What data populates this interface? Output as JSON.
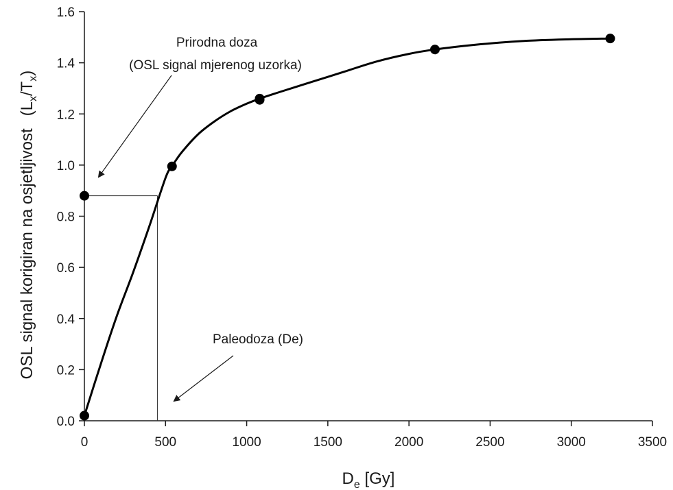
{
  "chart_data": {
    "type": "scatter",
    "title": "",
    "xlabel": {
      "main": "D",
      "sub": "e",
      "rest": " [Gy]"
    },
    "ylabel": {
      "main": "OSL signal korigiran na osjetljivost",
      "paren_open": "(L",
      "sub1": "x",
      "slash": "/T",
      "sub2": "x",
      "paren_close": ")"
    },
    "xlim": [
      0,
      3500
    ],
    "ylim": [
      0,
      1.6
    ],
    "x_ticks": [
      0,
      500,
      1000,
      1500,
      2000,
      2500,
      3000,
      3500
    ],
    "x_tick_labels": [
      "0",
      "500",
      "1000",
      "1500",
      "2000",
      "2500",
      "3000",
      "3500"
    ],
    "y_ticks": [
      0.0,
      0.2,
      0.4,
      0.6,
      0.8,
      1.0,
      1.2,
      1.4,
      1.6
    ],
    "y_tick_labels": [
      "0.0",
      "0.2",
      "0.4",
      "0.6",
      "0.8",
      "1.0",
      "1.2",
      "1.4",
      "1.6"
    ],
    "grid": false,
    "legend": "none",
    "series": [
      {
        "x": [
          0,
          0,
          540,
          1080,
          1080,
          2160,
          3240
        ],
        "y": [
          0.02,
          0.88,
          0.995,
          1.26,
          1.255,
          1.452,
          1.495
        ]
      }
    ],
    "fit_curve": {
      "x": [
        0,
        100,
        200,
        300,
        400,
        500,
        540,
        600,
        700,
        800,
        900,
        1000,
        1080,
        1200,
        1400,
        1600,
        1800,
        2000,
        2160,
        2400,
        2700,
        3000,
        3240
      ],
      "y": [
        0.02,
        0.22,
        0.41,
        0.58,
        0.76,
        0.95,
        0.995,
        1.05,
        1.12,
        1.17,
        1.21,
        1.24,
        1.26,
        1.285,
        1.325,
        1.365,
        1.405,
        1.435,
        1.452,
        1.47,
        1.485,
        1.492,
        1.495
      ]
    },
    "guide_lines": {
      "natural_dose_y": 0.88,
      "paleodose_x": 450
    },
    "annotations": [
      {
        "lines": [
          "Prirodna doza",
          "(OSL signal mjerenog uzorka)"
        ]
      },
      {
        "lines": [
          "Paleodoza (De)"
        ]
      }
    ],
    "colors": {
      "axis": "#1a1a1a",
      "markers": "#000000",
      "curve": "#000000",
      "guide": "#333333"
    }
  }
}
